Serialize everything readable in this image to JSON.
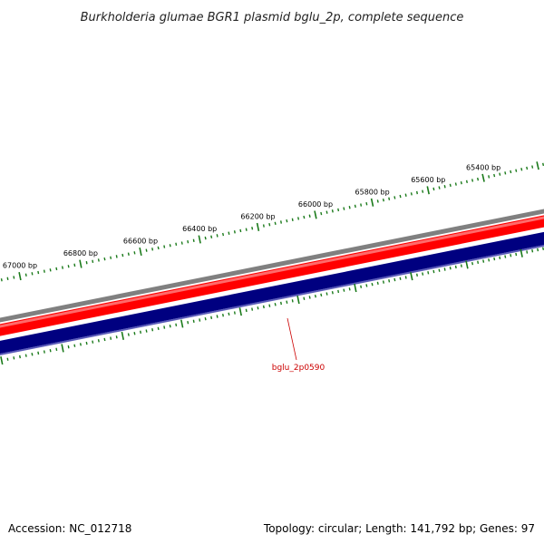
{
  "title": "Burkholderia glumae BGR1 plasmid bglu_2p, complete sequence",
  "footer": {
    "accession": "Accession: NC_012718",
    "summary": "Topology: circular; Length: 141,792 bp; Genes: 97"
  },
  "colors": {
    "backbone": "#808080",
    "forward_strand": "#ff0000",
    "reverse_strand": "#000080",
    "ticks": "#1a7a1a",
    "gene_label": "#cc0000"
  },
  "chart_data": {
    "type": "circular_genome_map_arc",
    "tick_labels": [
      "65400 bp",
      "65600 bp",
      "65800 bp",
      "66000 bp",
      "66200 bp",
      "66400 bp",
      "66600 bp",
      "66800 bp",
      "67000 bp"
    ],
    "gene_labels": [
      "bglu_2p0590"
    ]
  }
}
